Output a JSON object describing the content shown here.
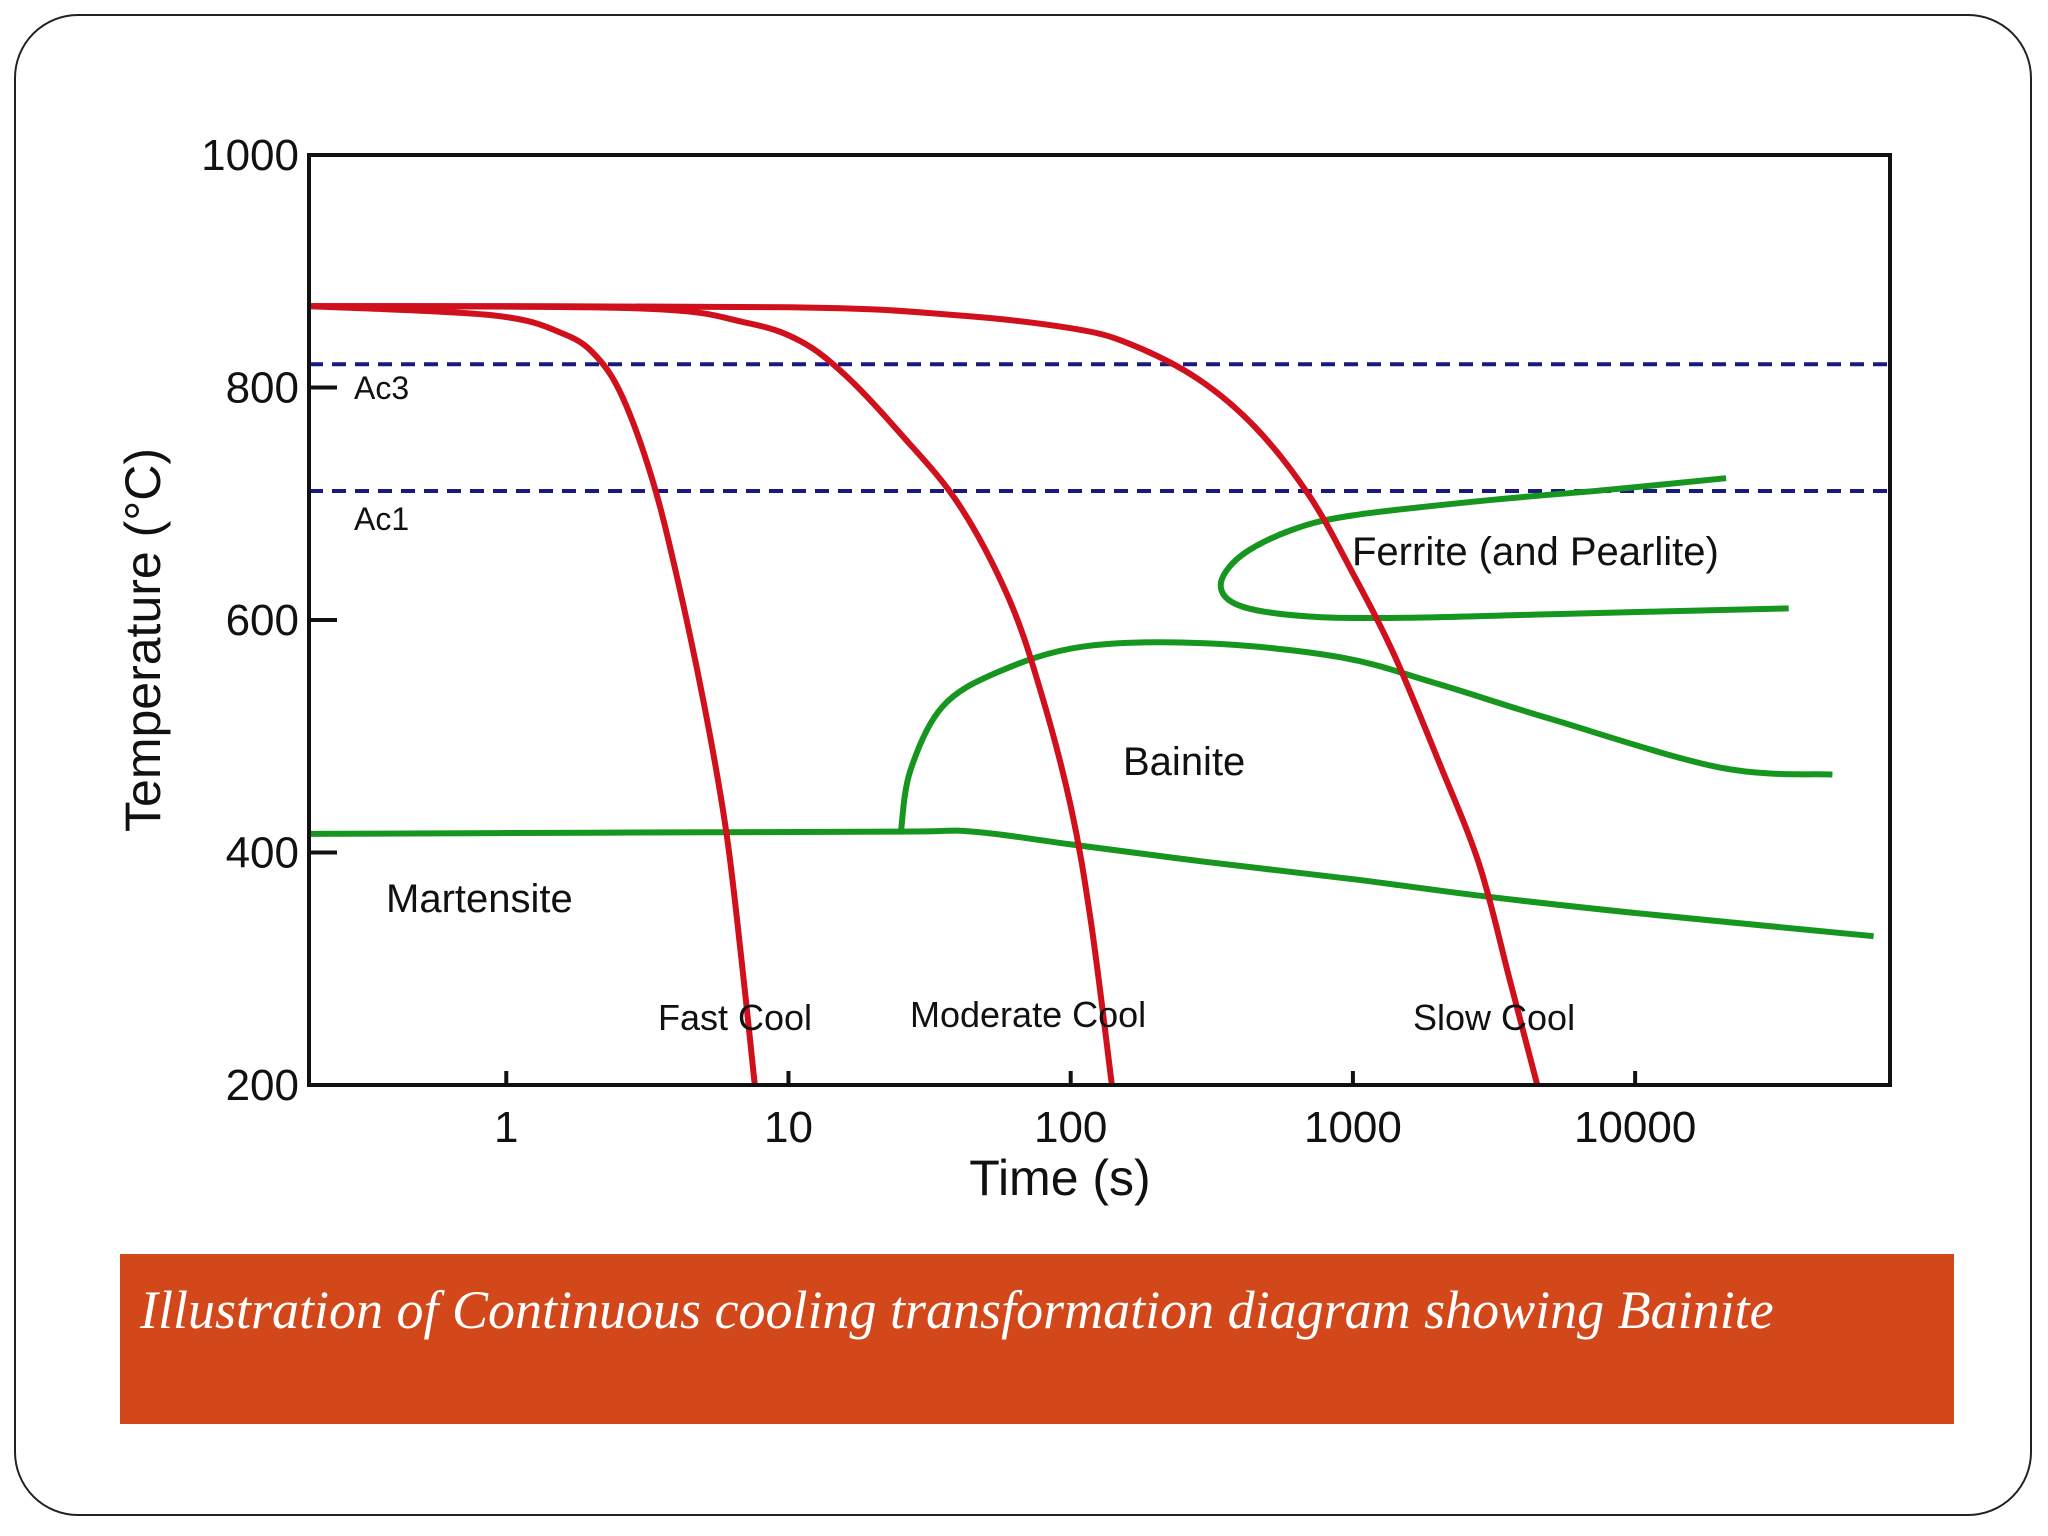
{
  "caption": "Illustration of Continuous cooling transformation diagram showing Bainite",
  "colors": {
    "caption_bg": "#d2481a",
    "cooling_curve": "#d0101c",
    "phase_boundary": "#16951f",
    "critical_line": "#1a1a7e"
  },
  "chart_data": {
    "type": "line",
    "title": "",
    "xlabel": "Time (s)",
    "ylabel": "Temperature (°C)",
    "x_scale": "log",
    "xticks": [
      {
        "value": 1,
        "label": "1"
      },
      {
        "value": 10,
        "label": "10"
      },
      {
        "value": 100,
        "label": "100"
      },
      {
        "value": 1000,
        "label": "1000"
      },
      {
        "value": 10000,
        "label": "10000"
      }
    ],
    "yticks": [
      {
        "value": 200,
        "label": "200"
      },
      {
        "value": 400,
        "label": "400"
      },
      {
        "value": 600,
        "label": "600"
      },
      {
        "value": 800,
        "label": "800"
      },
      {
        "value": 1000,
        "label": "1000"
      }
    ],
    "xlim": [
      0.2,
      80000
    ],
    "ylim": [
      200,
      1000
    ],
    "grid": false,
    "reference_lines": [
      {
        "label": "Ac3",
        "y": 820,
        "style": "dashed"
      },
      {
        "label": "Ac1",
        "y": 711,
        "style": "dashed"
      }
    ],
    "cooling_curves": [
      {
        "label": "Fast Cool",
        "points": [
          [
            0.2,
            870
          ],
          [
            0.9,
            862
          ],
          [
            1.6,
            846
          ],
          [
            2.1,
            826
          ],
          [
            2.6,
            790
          ],
          [
            3.3,
            720
          ],
          [
            4.0,
            640
          ],
          [
            5.0,
            530
          ],
          [
            6.0,
            420
          ],
          [
            6.8,
            310
          ],
          [
            7.6,
            200
          ]
        ]
      },
      {
        "label": "Moderate Cool",
        "points": [
          [
            0.2,
            870
          ],
          [
            3.0,
            868
          ],
          [
            7.0,
            856
          ],
          [
            11,
            840
          ],
          [
            16,
            810
          ],
          [
            25,
            760
          ],
          [
            40,
            700
          ],
          [
            60,
            620
          ],
          [
            78,
            540
          ],
          [
            100,
            440
          ],
          [
            118,
            340
          ],
          [
            140,
            200
          ]
        ]
      },
      {
        "label": "Slow Cool",
        "points": [
          [
            0.2,
            870
          ],
          [
            10,
            869
          ],
          [
            40,
            862
          ],
          [
            100,
            851
          ],
          [
            160,
            838
          ],
          [
            280,
            808
          ],
          [
            450,
            766
          ],
          [
            700,
            707
          ],
          [
            1000,
            640
          ],
          [
            1400,
            570
          ],
          [
            2000,
            480
          ],
          [
            2800,
            390
          ],
          [
            3600,
            290
          ],
          [
            4500,
            200
          ]
        ]
      }
    ],
    "phase_boundaries": [
      {
        "region": "Ferrite (and Pearlite)",
        "points": [
          [
            21000,
            722
          ],
          [
            8000,
            712
          ],
          [
            3000,
            703
          ],
          [
            1000,
            690
          ],
          [
            600,
            677
          ],
          [
            400,
            655
          ],
          [
            340,
            630
          ],
          [
            400,
            612
          ],
          [
            700,
            603
          ],
          [
            1600,
            602
          ],
          [
            5000,
            605
          ],
          [
            35000,
            610
          ]
        ]
      },
      {
        "region": "Bainite",
        "points": [
          [
            25,
            417
          ],
          [
            27,
            470
          ],
          [
            35,
            525
          ],
          [
            55,
            555
          ],
          [
            110,
            577
          ],
          [
            300,
            580
          ],
          [
            900,
            568
          ],
          [
            2000,
            545
          ],
          [
            5000,
            515
          ],
          [
            20000,
            473
          ],
          [
            50000,
            467
          ]
        ]
      },
      {
        "region": "Martensite",
        "points": [
          [
            0.2,
            416
          ],
          [
            2,
            417
          ],
          [
            25,
            418
          ],
          [
            45,
            418
          ],
          [
            100,
            407
          ],
          [
            300,
            392
          ],
          [
            1000,
            377
          ],
          [
            3000,
            362
          ],
          [
            10000,
            348
          ],
          [
            70000,
            328
          ]
        ]
      }
    ],
    "region_labels": [
      "Ferrite (and Pearlite)",
      "Bainite",
      "Martensite"
    ]
  }
}
